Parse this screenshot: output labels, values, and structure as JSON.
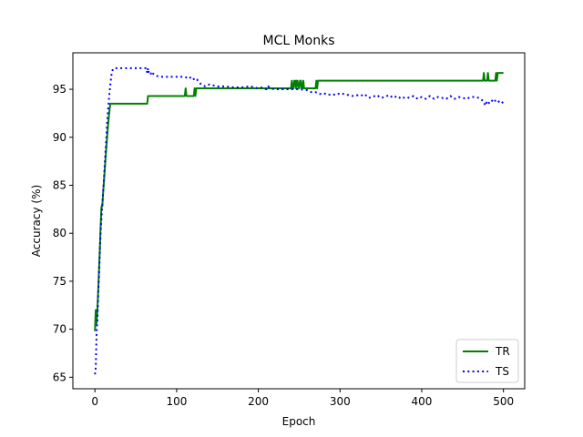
{
  "chart_data": {
    "type": "line",
    "title": "MCL Monks",
    "xlabel": "Epoch",
    "ylabel": "Accuracy (%)",
    "xlim": [
      -27,
      526
    ],
    "ylim": [
      63.8,
      98.8
    ],
    "xticks": [
      0,
      100,
      200,
      300,
      400,
      500
    ],
    "yticks": [
      65,
      70,
      75,
      80,
      85,
      90,
      95
    ],
    "grid": false,
    "legend_position": "bottom-right",
    "series": [
      {
        "name": "TR",
        "color": "#008000",
        "style": "solid",
        "x": [
          0,
          1,
          2,
          3,
          4,
          5,
          6,
          7,
          8,
          9,
          10,
          12,
          14,
          16,
          18,
          19,
          20,
          30,
          40,
          50,
          64,
          65,
          66,
          80,
          100,
          110,
          111,
          112,
          120,
          121,
          122,
          123,
          124,
          125,
          126,
          150,
          180,
          200,
          220,
          240,
          241,
          242,
          243,
          244,
          245,
          246,
          247,
          248,
          249,
          250,
          251,
          252,
          253,
          254,
          255,
          256,
          257,
          258,
          259,
          260,
          270,
          271,
          272,
          273,
          274,
          275,
          300,
          350,
          400,
          450,
          475,
          476,
          477,
          478,
          480,
          481,
          482,
          483,
          485,
          490,
          491,
          492,
          493,
          495,
          500
        ],
        "y": [
          69.8,
          72.0,
          70.6,
          72.0,
          74.0,
          76.2,
          78.4,
          80.8,
          82.8,
          82.8,
          84.2,
          86.6,
          89.0,
          91.2,
          93.0,
          93.5,
          93.5,
          93.5,
          93.5,
          93.5,
          93.5,
          94.3,
          94.3,
          94.3,
          94.3,
          94.3,
          95.1,
          94.3,
          94.3,
          94.3,
          95.1,
          94.3,
          95.1,
          95.1,
          95.1,
          95.1,
          95.1,
          95.1,
          95.1,
          95.1,
          95.9,
          95.1,
          95.1,
          95.9,
          95.9,
          95.1,
          95.9,
          95.9,
          95.1,
          95.1,
          95.9,
          95.9,
          95.1,
          95.1,
          95.9,
          95.1,
          95.1,
          95.1,
          95.1,
          95.1,
          95.1,
          95.9,
          95.1,
          95.9,
          95.9,
          95.9,
          95.9,
          95.9,
          95.9,
          95.9,
          95.9,
          96.7,
          95.9,
          95.9,
          95.9,
          96.7,
          95.9,
          95.9,
          95.9,
          95.9,
          96.7,
          95.9,
          96.7,
          96.7,
          96.7
        ]
      },
      {
        "name": "TS",
        "color": "#0000ff",
        "style": "dotted",
        "x": [
          0,
          1,
          2,
          3,
          4,
          5,
          6,
          7,
          8,
          9,
          10,
          11,
          12,
          13,
          14,
          15,
          16,
          17,
          18,
          19,
          20,
          21,
          22,
          24,
          26,
          30,
          40,
          50,
          60,
          63,
          64,
          65,
          66,
          67,
          68,
          69,
          70,
          75,
          80,
          90,
          100,
          110,
          115,
          118,
          120,
          122,
          125,
          128,
          130,
          135,
          140,
          150,
          160,
          170,
          180,
          190,
          200,
          205,
          210,
          212,
          215,
          220,
          230,
          240,
          250,
          260,
          265,
          270,
          275,
          280,
          285,
          290,
          295,
          300,
          305,
          310,
          315,
          320,
          325,
          330,
          335,
          340,
          345,
          350,
          355,
          360,
          365,
          370,
          375,
          380,
          385,
          390,
          395,
          400,
          405,
          410,
          415,
          420,
          425,
          430,
          435,
          440,
          445,
          450,
          455,
          460,
          465,
          470,
          475,
          478,
          480,
          483,
          485,
          488,
          490,
          493,
          495,
          498,
          500
        ],
        "y": [
          65.3,
          66.0,
          69.6,
          71.0,
          73.6,
          75.6,
          78.0,
          80.2,
          81.6,
          83.0,
          84.2,
          85.6,
          87.2,
          88.6,
          90.0,
          91.6,
          92.8,
          93.8,
          94.8,
          95.6,
          96.4,
          96.8,
          97.1,
          97.2,
          97.2,
          97.2,
          97.2,
          97.2,
          97.2,
          97.2,
          96.7,
          97.2,
          96.7,
          96.7,
          96.8,
          96.5,
          96.7,
          96.4,
          96.3,
          96.3,
          96.3,
          96.3,
          96.1,
          96.3,
          96.2,
          95.9,
          96.0,
          95.7,
          95.5,
          95.3,
          95.5,
          95.3,
          95.3,
          95.2,
          95.2,
          95.3,
          95.1,
          95.2,
          95.0,
          95.3,
          95.1,
          95.0,
          95.0,
          95.0,
          95.0,
          94.9,
          94.7,
          94.7,
          94.5,
          94.6,
          94.4,
          94.5,
          94.4,
          94.6,
          94.5,
          94.4,
          94.3,
          94.4,
          94.3,
          94.5,
          94.1,
          94.2,
          94.4,
          94.1,
          94.2,
          94.4,
          94.1,
          94.3,
          94.0,
          94.2,
          94.1,
          94.3,
          94.0,
          94.2,
          94.0,
          94.3,
          94.0,
          94.2,
          94.1,
          94.0,
          94.3,
          94.0,
          94.2,
          94.1,
          94.0,
          94.2,
          94.2,
          94.1,
          93.8,
          93.3,
          93.8,
          93.5,
          93.7,
          94.0,
          93.8,
          93.9,
          93.6,
          93.7,
          93.5
        ]
      }
    ]
  }
}
